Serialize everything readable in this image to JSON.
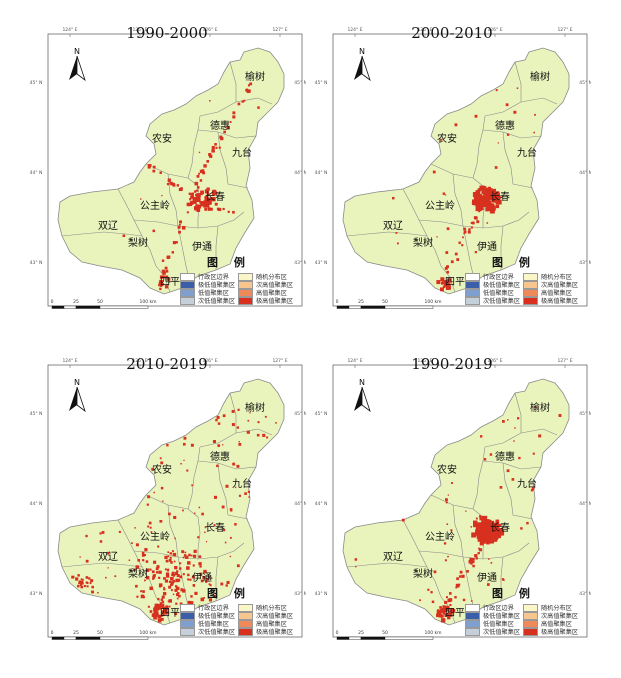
{
  "colors": {
    "land": "#e9f3bc",
    "boundary": "#8a8a8a",
    "hotspot": "#d7301f",
    "legend": {
      "boundary": "#ffffff",
      "sig_low": "#3a5ea8",
      "low": "#7f9fcf",
      "sub_low": "#c4cfd9",
      "random": "#fbf6c8",
      "sub_high": "#f6c68e",
      "high": "#ee8a5a",
      "sig_high": "#d7301f"
    }
  },
  "north_label": "N",
  "legend_title": "图  例",
  "legend_items": {
    "boundary": "行政区边界",
    "random": "随机分布区",
    "sig_low": "极低值聚集区",
    "sub_high": "次高值聚集区",
    "low": "低值聚集区",
    "high": "高值聚集区",
    "sub_low": "次低值聚集区",
    "sig_high": "极高值聚集区"
  },
  "scale": {
    "t0": "0",
    "t1": "25",
    "t2": "50",
    "t3": "100 km"
  },
  "coords": {
    "top": [
      "124° E",
      "125° E",
      "126° E",
      "127° E"
    ],
    "left": [
      "45° N",
      "44° N",
      "43° N"
    ],
    "right": [
      "45° N",
      "44° N",
      "43° N"
    ]
  },
  "cities": {
    "yushu": "榆树",
    "dehui": "德惠",
    "nongan": "农安",
    "jiutai": "九台",
    "changchun": "长春",
    "gongzhuling": "公主岭",
    "shuangliao": "双辽",
    "lishu": "梨树",
    "yitong": "伊通",
    "siping": "四平"
  },
  "panels": [
    {
      "title": "1990-2000",
      "hotspots": "corridor"
    },
    {
      "title": "2000-2010",
      "hotspots": "core"
    },
    {
      "title": "2010-2019",
      "hotspots": "dispersed"
    },
    {
      "title": "1990-2019",
      "hotspots": "combined"
    }
  ]
}
